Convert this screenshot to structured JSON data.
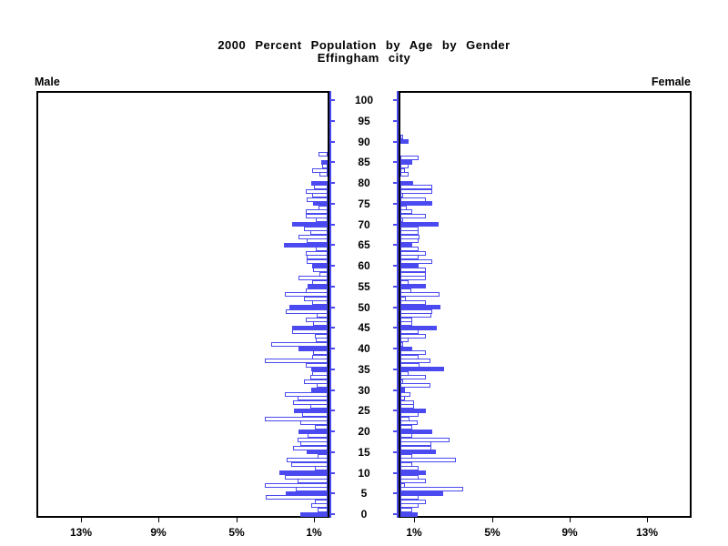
{
  "title": {
    "line1": "2000 Percent Population by Age by Gender",
    "line2": "Effingham city"
  },
  "panel_labels": {
    "male": "Male",
    "female": "Female"
  },
  "colors": {
    "bar_blue": "#4a4af0",
    "axis_black": "#000000",
    "background": "#ffffff"
  },
  "axes": {
    "age_axis_labels": [
      "0",
      "5",
      "10",
      "15",
      "20",
      "25",
      "30",
      "35",
      "40",
      "45",
      "50",
      "55",
      "60",
      "65",
      "70",
      "75",
      "80",
      "85",
      "90",
      "95",
      "100"
    ],
    "male_pct_ticks": [
      {
        "label": "13%",
        "pct": 13
      },
      {
        "label": "9%",
        "pct": 9
      },
      {
        "label": "5%",
        "pct": 5
      },
      {
        "label": "1%",
        "pct": 1
      }
    ],
    "female_pct_ticks": [
      {
        "label": "1%",
        "pct": 1
      },
      {
        "label": "5%",
        "pct": 5
      },
      {
        "label": "9%",
        "pct": 9
      },
      {
        "label": "13%",
        "pct": 13
      }
    ],
    "pct_max_per_side": 15,
    "age_min": 0,
    "age_max": 100
  },
  "chart_data": {
    "type": "bar",
    "subtype": "population-pyramid",
    "title": "2000 Percent Population by Age by Gender",
    "subtitle": "Effingham city",
    "unit": "percent of population",
    "age_step": 1,
    "solid_fill_at_multiples_of": 5,
    "xlim_per_side": [
      0,
      15
    ],
    "ages": [
      0,
      1,
      2,
      3,
      4,
      5,
      6,
      7,
      8,
      9,
      10,
      11,
      12,
      13,
      14,
      15,
      16,
      17,
      18,
      19,
      20,
      21,
      22,
      23,
      24,
      25,
      26,
      27,
      28,
      29,
      30,
      31,
      32,
      33,
      34,
      35,
      36,
      37,
      38,
      39,
      40,
      41,
      42,
      43,
      44,
      45,
      46,
      47,
      48,
      49,
      50,
      51,
      52,
      53,
      54,
      55,
      56,
      57,
      58,
      59,
      60,
      61,
      62,
      63,
      64,
      65,
      66,
      67,
      68,
      69,
      70,
      71,
      72,
      73,
      74,
      75,
      76,
      77,
      78,
      79,
      80,
      81,
      82,
      83,
      84,
      85,
      86,
      87,
      88,
      89,
      90,
      91,
      92
    ],
    "series": [
      {
        "name": "Male",
        "values": [
          1.4,
          0.5,
          0.85,
          0.65,
          3.2,
          2.15,
          1.65,
          3.25,
          1.55,
          2.2,
          2.5,
          0.65,
          1.9,
          2.1,
          0.5,
          1.1,
          1.8,
          1.4,
          1.55,
          1.05,
          1.5,
          0.65,
          1.4,
          3.25,
          1.3,
          1.75,
          0.9,
          1.8,
          1.55,
          2.2,
          0.85,
          0.55,
          1.2,
          0.9,
          0.8,
          0.85,
          1.15,
          3.25,
          0.8,
          0.75,
          1.5,
          2.9,
          0.6,
          0.65,
          1.85,
          1.85,
          0.75,
          1.15,
          0.55,
          2.15,
          1.95,
          0.8,
          1.2,
          2.2,
          1.15,
          1.05,
          0.8,
          1.5,
          0.4,
          0.75,
          0.8,
          1.1,
          1.1,
          1.15,
          0.6,
          2.25,
          1.1,
          1.5,
          0.9,
          1.2,
          1.85,
          0.6,
          1.15,
          1.15,
          0.45,
          0.75,
          1.1,
          0.8,
          1.15,
          0.7,
          0.85,
          0.0,
          0.4,
          0.8,
          0.3,
          0.35,
          0.0,
          0.45,
          0.0,
          0.0,
          0.0,
          0.0,
          0.0
        ]
      },
      {
        "name": "Female",
        "values": [
          0.9,
          0.6,
          0.95,
          1.3,
          0.95,
          2.2,
          3.25,
          0.25,
          1.3,
          0.95,
          1.3,
          0.95,
          0.6,
          2.85,
          0.6,
          1.85,
          1.6,
          1.6,
          2.55,
          0.6,
          1.65,
          0.6,
          0.9,
          0.45,
          0.95,
          1.3,
          0.7,
          0.7,
          0.25,
          0.5,
          0.25,
          1.55,
          0.15,
          1.3,
          0.4,
          2.25,
          1.0,
          1.55,
          0.95,
          1.3,
          0.6,
          0.15,
          0.4,
          1.3,
          0.95,
          1.9,
          0.6,
          0.6,
          1.6,
          1.65,
          2.05,
          1.3,
          0.3,
          2.0,
          0.55,
          1.3,
          0.4,
          1.3,
          1.3,
          1.3,
          0.95,
          1.65,
          0.95,
          1.3,
          0.95,
          0.6,
          0.95,
          1.0,
          0.95,
          0.95,
          1.95,
          0.15,
          1.3,
          0.6,
          0.35,
          1.65,
          1.3,
          0.15,
          1.65,
          1.65,
          0.65,
          0.0,
          0.4,
          0.25,
          0.4,
          0.6,
          0.95,
          0.0,
          0.0,
          0.0,
          0.4,
          0.15,
          0.0
        ]
      }
    ]
  }
}
